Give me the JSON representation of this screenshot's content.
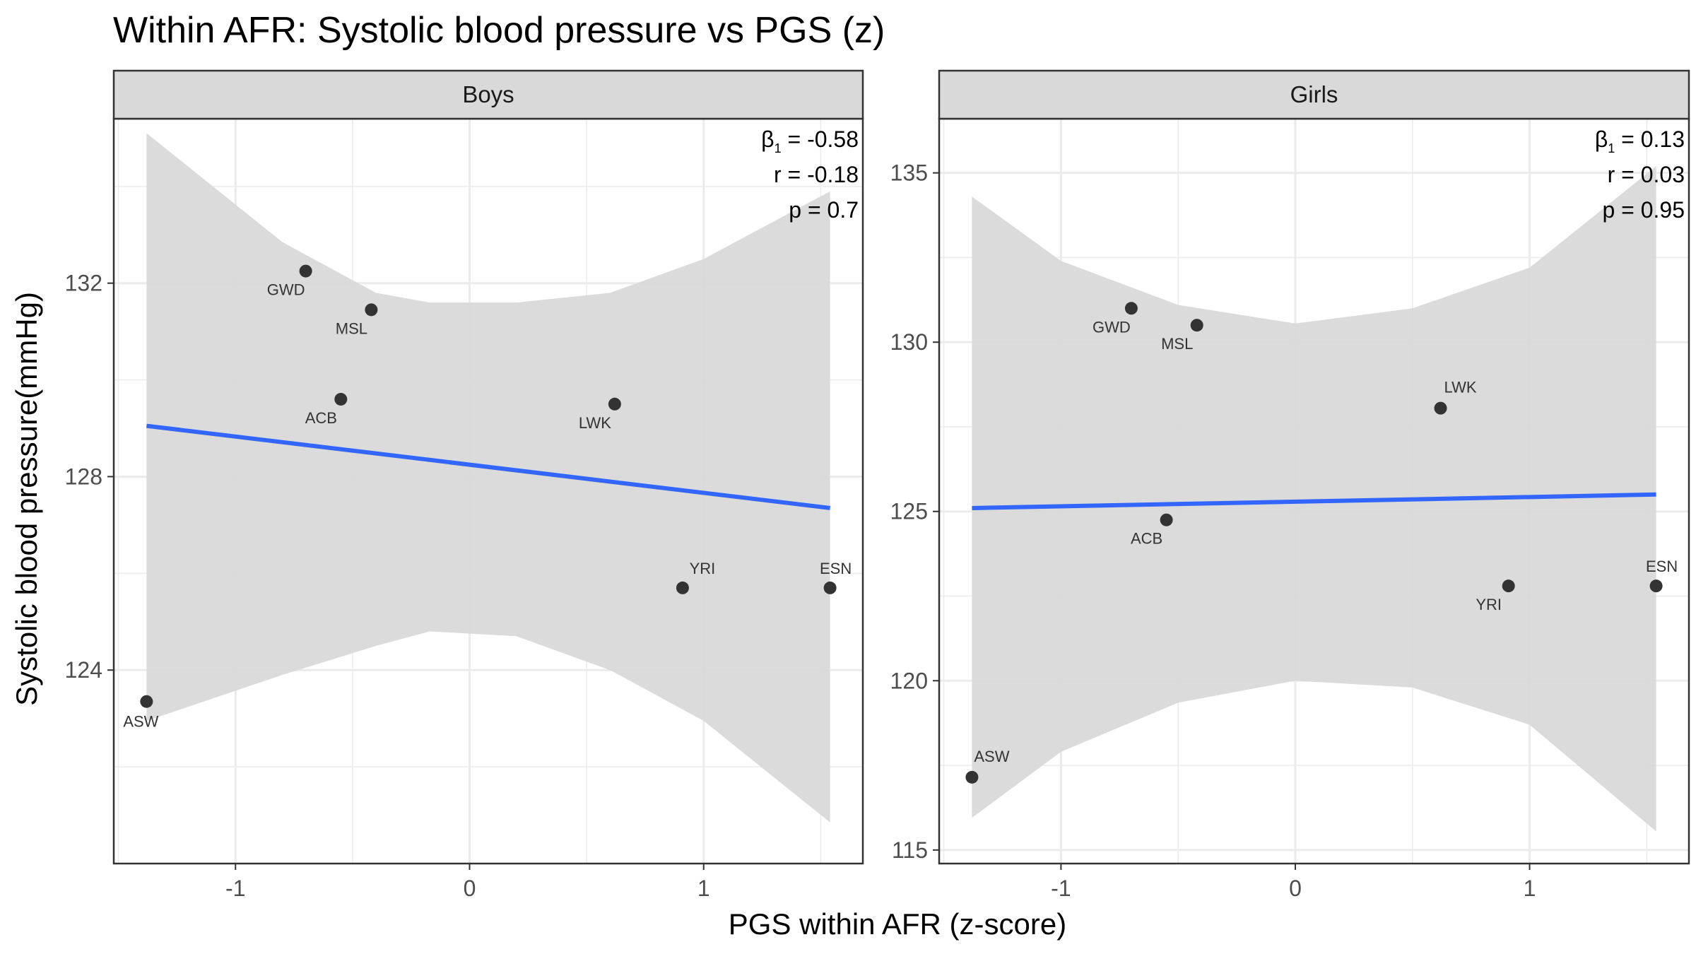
{
  "title": "Within AFR: Systolic blood pressure vs PGS (z)",
  "xlabel": "PGS within AFR (z-score)",
  "ylabel": "Systolic blood pressure(mmHg)",
  "colors": {
    "line": "#3366ff",
    "ribbon": "#d9d9d9",
    "point": "#333333",
    "strip": "#d9d9d9",
    "grid": "#ebebeb"
  },
  "chart_data": [
    {
      "type": "scatter",
      "panel": "Boys",
      "xlim": [
        -1.52,
        1.68
      ],
      "ylim": [
        120.0,
        135.4
      ],
      "x_ticks": [
        -1,
        0,
        1
      ],
      "x_tick_labels": [
        "-1",
        "0",
        "1"
      ],
      "y_ticks": [
        124,
        128,
        132
      ],
      "y_tick_labels": [
        "124",
        "128",
        "132"
      ],
      "points": [
        {
          "label": "ASW",
          "x": -1.38,
          "y": 123.35
        },
        {
          "label": "GWD",
          "x": -0.7,
          "y": 132.25
        },
        {
          "label": "MSL",
          "x": -0.42,
          "y": 131.45
        },
        {
          "label": "ACB",
          "x": -0.55,
          "y": 129.6
        },
        {
          "label": "LWK",
          "x": 0.62,
          "y": 129.5
        },
        {
          "label": "YRI",
          "x": 0.91,
          "y": 125.7
        },
        {
          "label": "ESN",
          "x": 1.54,
          "y": 125.7
        }
      ],
      "fit_line": {
        "x": [
          -1.38,
          1.54
        ],
        "y": [
          129.05,
          127.35
        ]
      },
      "confidence_band": {
        "x": [
          -1.38,
          -0.8,
          -0.4,
          -0.17,
          0.2,
          0.6,
          1.0,
          1.54
        ],
        "upper": [
          135.1,
          132.85,
          131.8,
          131.6,
          131.6,
          131.8,
          132.5,
          133.9
        ],
        "lower": [
          122.95,
          123.9,
          124.5,
          124.8,
          124.7,
          124.0,
          122.95,
          120.85
        ]
      },
      "stats": {
        "beta_symbol": "β",
        "beta_sub": "1",
        "beta_text": " = -0.58",
        "r": "r = -0.18",
        "p": "p = 0.7"
      }
    },
    {
      "type": "scatter",
      "panel": "Girls",
      "xlim": [
        -1.52,
        1.68
      ],
      "ylim": [
        114.6,
        136.6
      ],
      "x_ticks": [
        -1,
        0,
        1
      ],
      "x_tick_labels": [
        "-1",
        "0",
        "1"
      ],
      "y_ticks": [
        115,
        120,
        125,
        130,
        135
      ],
      "y_tick_labels": [
        "115",
        "120",
        "125",
        "130",
        "135"
      ],
      "points": [
        {
          "label": "ASW",
          "x": -1.38,
          "y": 117.15
        },
        {
          "label": "GWD",
          "x": -0.7,
          "y": 131.0
        },
        {
          "label": "MSL",
          "x": -0.42,
          "y": 130.5
        },
        {
          "label": "LWK",
          "x": 0.62,
          "y": 128.05
        },
        {
          "label": "ACB",
          "x": -0.55,
          "y": 124.75
        },
        {
          "label": "YRI",
          "x": 0.91,
          "y": 122.8
        },
        {
          "label": "ESN",
          "x": 1.54,
          "y": 122.8
        }
      ],
      "fit_line": {
        "x": [
          -1.38,
          1.54
        ],
        "y": [
          125.1,
          125.5
        ]
      },
      "confidence_band": {
        "x": [
          -1.38,
          -1.0,
          -0.5,
          0.0,
          0.5,
          1.0,
          1.54
        ],
        "upper": [
          134.3,
          132.4,
          131.1,
          130.55,
          131.0,
          132.2,
          135.2
        ],
        "lower": [
          115.95,
          117.9,
          119.35,
          120.0,
          119.8,
          118.7,
          115.55
        ]
      },
      "stats": {
        "beta_symbol": "β",
        "beta_sub": "1",
        "beta_text": " = 0.13",
        "r": "r = 0.03",
        "p": "p = 0.95"
      }
    }
  ]
}
